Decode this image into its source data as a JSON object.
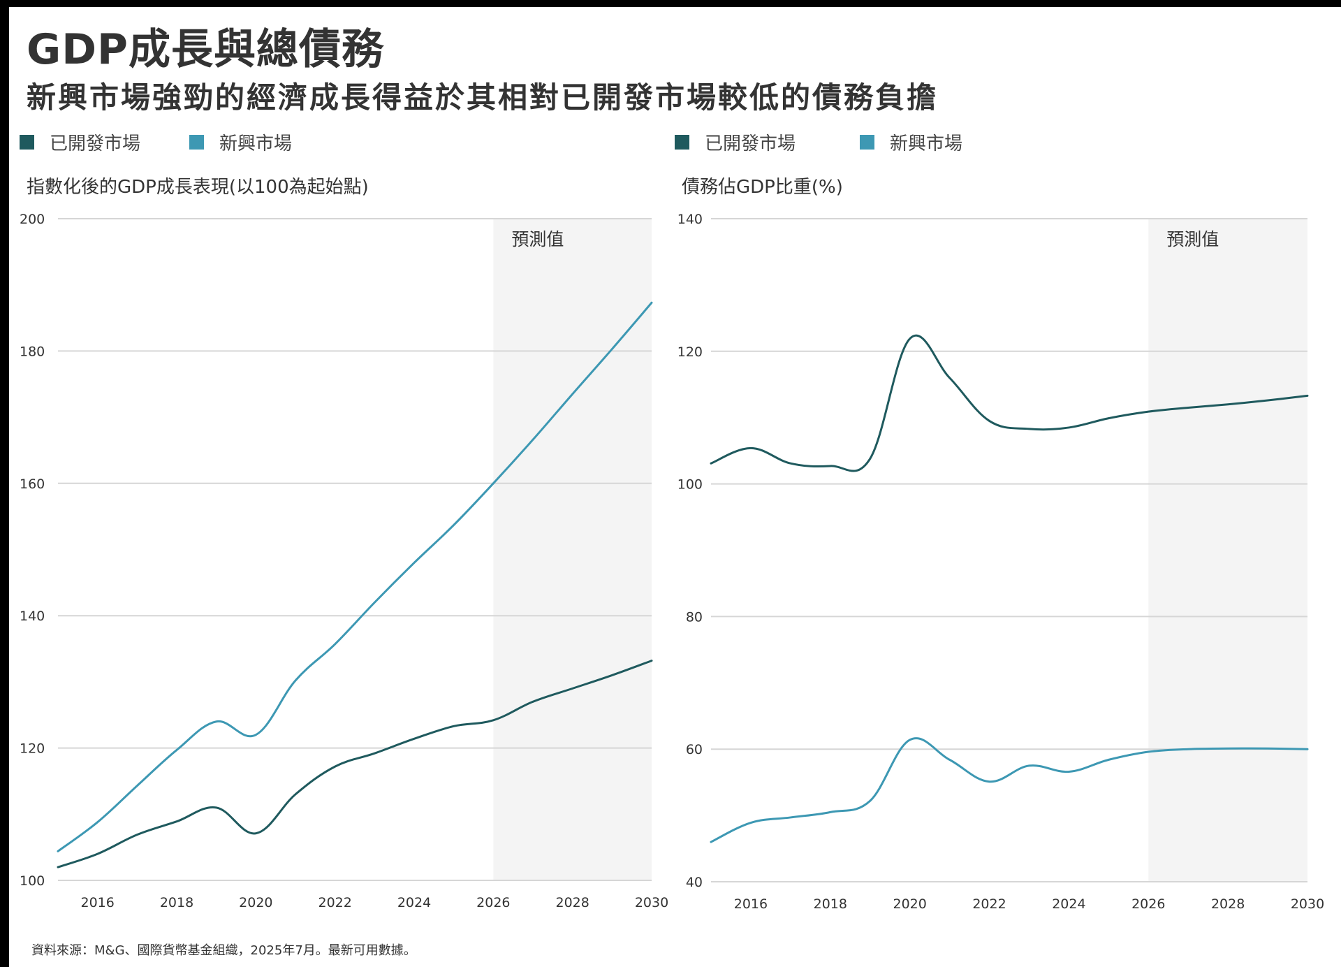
{
  "title": "GDP成長與總債務",
  "subtitle": "新興市場強勁的經濟成長得益於其相對已開發市場較低的債務負擔",
  "colors": {
    "developed": "#1f5a5e",
    "emerging": "#3d98b3",
    "forecast_shade": "#f4f4f4",
    "grid": "#d6d6d6"
  },
  "footnote": "資料來源：M&G、國際貨幣基金組織，2025年7月。最新可用數據。",
  "chart_data": [
    {
      "type": "line",
      "title": "指數化後的GDP成長表現(以100為起始點)",
      "xlabel": "",
      "ylabel": "指數化後的GDP成長表現(以100為起始點)",
      "legend": [
        "已開發市場",
        "新興市場"
      ],
      "legend_position": "top-left",
      "x": [
        2015,
        2016,
        2017,
        2018,
        2019,
        2020,
        2021,
        2022,
        2023,
        2024,
        2025,
        2026,
        2027,
        2028,
        2029,
        2030
      ],
      "xlim": [
        2015,
        2030
      ],
      "xticks": [
        "2016",
        "2018",
        "2020",
        "2022",
        "2024",
        "2026",
        "2028",
        "2030"
      ],
      "xtick_values": [
        2016,
        2018,
        2020,
        2022,
        2024,
        2026,
        2028,
        2030
      ],
      "ylim": [
        100,
        200
      ],
      "yticks": [
        "200",
        "180",
        "160",
        "140",
        "120",
        "100"
      ],
      "ytick_values": [
        200,
        180,
        160,
        140,
        120,
        100
      ],
      "grid": true,
      "forecast": {
        "label": "預測值",
        "from": 2026,
        "to": 2030
      },
      "series": [
        {
          "name": "已開發市場",
          "key": "developed",
          "values": [
            102.0,
            104.0,
            106.9,
            108.9,
            111.0,
            107.1,
            113.0,
            117.2,
            119.2,
            121.4,
            123.3,
            124.2,
            127.0,
            129.0,
            131.0,
            133.2
          ]
        },
        {
          "name": "新興市場",
          "key": "emerging",
          "values": [
            104.4,
            108.8,
            114.3,
            119.7,
            124.0,
            122.0,
            130.2,
            135.7,
            142.0,
            148.0,
            153.7,
            160.0,
            166.6,
            173.5,
            180.3,
            187.3
          ]
        }
      ]
    },
    {
      "type": "line",
      "title": "債務佔GDP比重(%)",
      "xlabel": "",
      "ylabel": "債務佔GDP比重(%)",
      "legend": [
        "已開發市場",
        "新興市場"
      ],
      "legend_position": "top-left",
      "x": [
        2015,
        2016,
        2017,
        2018,
        2019,
        2020,
        2021,
        2022,
        2023,
        2024,
        2025,
        2026,
        2027,
        2028,
        2029,
        2030
      ],
      "xlim": [
        2015,
        2030
      ],
      "xticks": [
        "2016",
        "2018",
        "2020",
        "2022",
        "2024",
        "2026",
        "2028",
        "2030"
      ],
      "xtick_values": [
        2016,
        2018,
        2020,
        2022,
        2024,
        2026,
        2028,
        2030
      ],
      "ylim": [
        40,
        140
      ],
      "yticks": [
        "140",
        "120",
        "100",
        "80",
        "60",
        "40"
      ],
      "ytick_values": [
        140,
        120,
        100,
        80,
        60,
        40
      ],
      "grid": true,
      "forecast": {
        "label": "預測值",
        "from": 2026,
        "to": 2030
      },
      "series": [
        {
          "name": "已開發市場",
          "key": "developed",
          "values": [
            103.1,
            105.4,
            103.1,
            102.7,
            103.8,
            121.9,
            116.0,
            109.5,
            108.3,
            108.5,
            109.9,
            110.9,
            111.5,
            112.0,
            112.6,
            113.3
          ]
        },
        {
          "name": "新興市場",
          "key": "emerging",
          "values": [
            46.0,
            48.9,
            49.7,
            50.5,
            52.2,
            61.4,
            58.4,
            55.1,
            57.5,
            56.6,
            58.4,
            59.6,
            60.0,
            60.1,
            60.1,
            60.0
          ]
        }
      ]
    }
  ]
}
